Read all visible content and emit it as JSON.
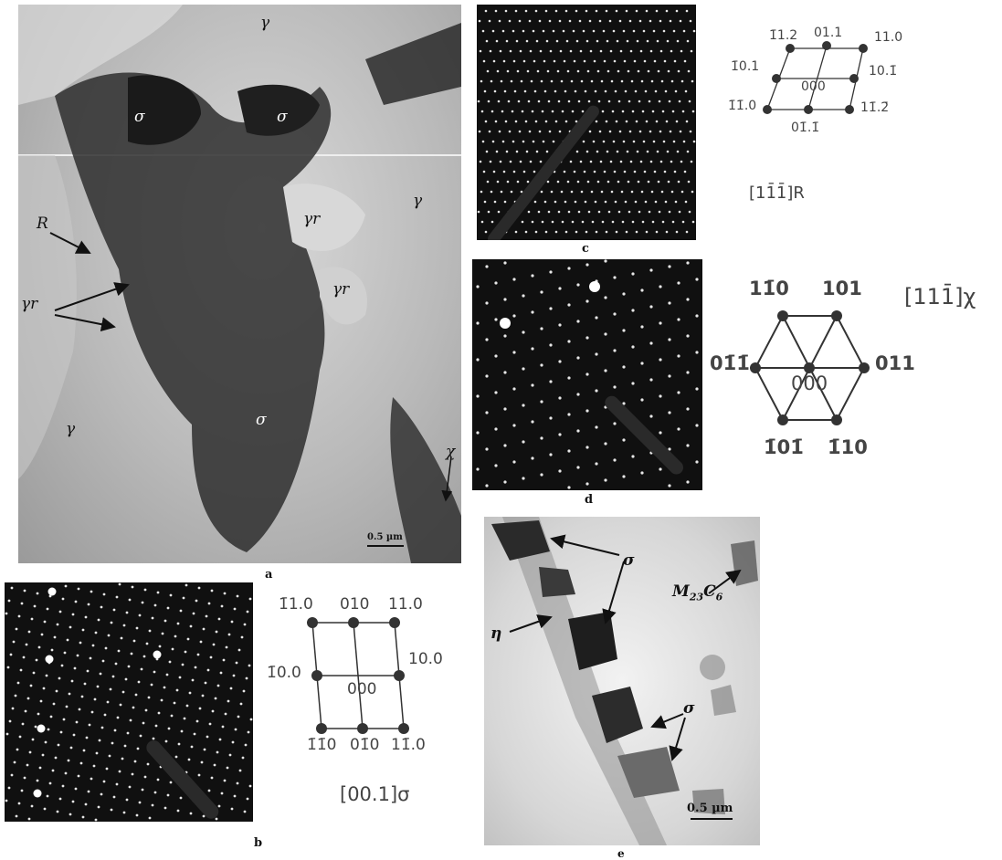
{
  "panel_a": {
    "caption": "a",
    "labels": {
      "gamma_top": "γ",
      "sigma_left": "σ",
      "sigma_right": "σ",
      "gamma_right": "γ",
      "gamma_r_1": "γr",
      "r": "R",
      "gamma_r_2": "γr",
      "gamma_r_3": "γr",
      "gamma_left": "γ",
      "sigma_center": "σ",
      "chi": "χ"
    },
    "scale_bar": "0.5 µm"
  },
  "panel_b": {
    "caption": "b",
    "indices": [
      "1̄1.0",
      "010",
      "11.0",
      "1̄0.0",
      "10.0",
      "000",
      "1̄1̄0",
      "01̄0",
      "11̄.0"
    ],
    "zone_axis": "[00.1]σ"
  },
  "panel_c": {
    "caption": "c",
    "indices": [
      "1̄1.2",
      "01.1",
      "11.0",
      "1̄0.1",
      "10.1̄",
      "000",
      "1̄1̄.0",
      "01̄.1̄",
      "11̄.2̄"
    ],
    "zone_axis": "[11̄1̄]R"
  },
  "panel_d": {
    "caption": "d",
    "indices": [
      "11̄0",
      "101",
      "01̄1̄",
      "011",
      "000",
      "1̄01̄",
      "1̄10"
    ],
    "zone_axis": "[111̄]χ"
  },
  "panel_e": {
    "caption": "e",
    "labels": {
      "sigma_top": "σ",
      "m23c6": "M23C6",
      "eta": "η",
      "sigma_bottom": "σ"
    },
    "scale_bar": "0.5 µm"
  }
}
